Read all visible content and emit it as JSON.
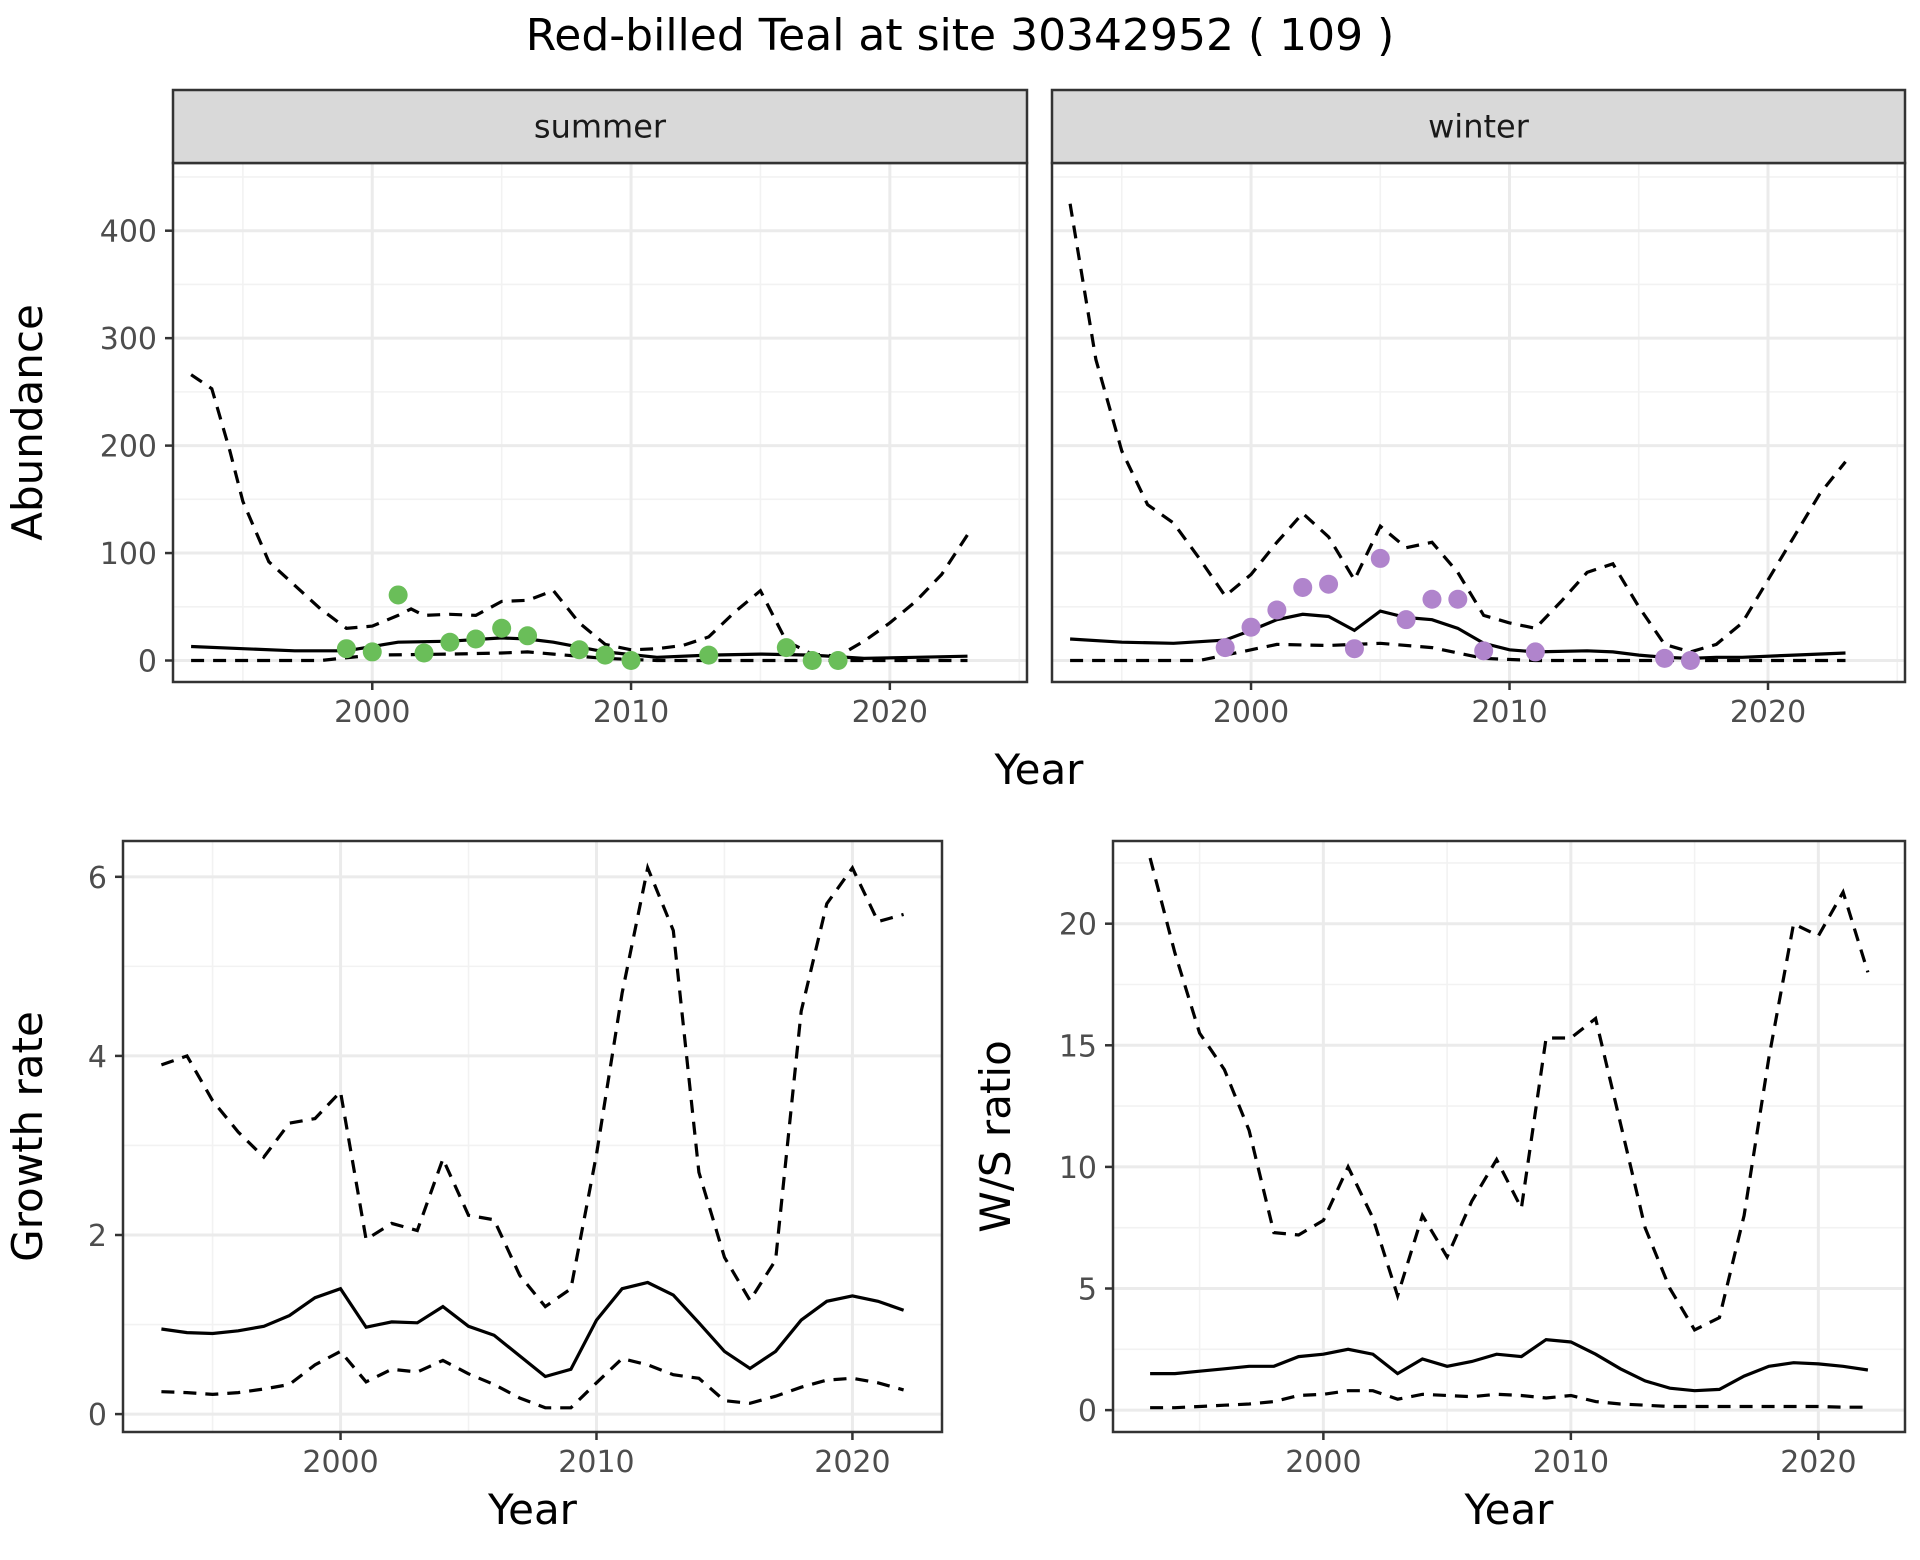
{
  "title": "Red-billed Teal at site 30342952 ( 109 )",
  "colors": {
    "summer_points": "#6ABE59",
    "winter_points": "#B084CC"
  },
  "chart_data": [
    {
      "type": "line",
      "facet": "summer",
      "xlabel": "Year",
      "ylabel": "Abundance",
      "xlim": [
        1992.3,
        2025.3
      ],
      "ylim": [
        -20,
        463
      ],
      "xticks": [
        2000,
        2010,
        2020
      ],
      "yticks": [
        0,
        100,
        200,
        300,
        400
      ],
      "grid": true,
      "series": [
        {
          "style": "solid",
          "x": [
            1993,
            1995,
            1997,
            1999,
            2001,
            2003,
            2005,
            2006,
            2007,
            2009,
            2011,
            2013,
            2015,
            2017,
            2019,
            2021,
            2023
          ],
          "y": [
            13,
            11,
            9,
            9,
            17,
            18,
            21,
            20,
            17,
            8,
            3,
            5,
            6,
            5,
            2,
            3,
            4
          ]
        },
        {
          "style": "dashed",
          "x": [
            1993,
            1993.8,
            1994.5,
            1995,
            1996,
            1998,
            1999,
            2000,
            2001,
            2001.5,
            2002,
            2003,
            2004,
            2005,
            2006,
            2007,
            2007.5,
            2008,
            2009,
            2010,
            2011,
            2012,
            2013,
            2014,
            2015,
            2016,
            2017,
            2018,
            2019,
            2020,
            2021,
            2022,
            2023
          ],
          "y": [
            266,
            253,
            195,
            148,
            92,
            48,
            30,
            32,
            42,
            48,
            42,
            43,
            42,
            55,
            56,
            65,
            50,
            35,
            15,
            10,
            11,
            14,
            22,
            45,
            65,
            18,
            6,
            4,
            18,
            35,
            55,
            80,
            117
          ]
        },
        {
          "style": "dashed",
          "x": [
            1993,
            1995,
            1998,
            2000,
            2003,
            2005,
            2006,
            2007,
            2009,
            2011,
            2013,
            2015,
            2017,
            2019,
            2021,
            2023
          ],
          "y": [
            0,
            0,
            0,
            5,
            6,
            7,
            8,
            6,
            2,
            0,
            0,
            0,
            0,
            0,
            0,
            0
          ]
        }
      ],
      "points": {
        "x": [
          1999,
          2000,
          2001,
          2002,
          2003,
          2004,
          2005,
          2006,
          2008,
          2009,
          2010,
          2013,
          2016,
          2017,
          2018
        ],
        "y": [
          11,
          8,
          61,
          7,
          17,
          20,
          30,
          23,
          10,
          5,
          0,
          5,
          12,
          0,
          0
        ]
      }
    },
    {
      "type": "line",
      "facet": "winter",
      "xlabel": "Year",
      "ylabel": "Abundance",
      "xlim": [
        1992.3,
        2025.3
      ],
      "ylim": [
        -20,
        463
      ],
      "xticks": [
        2000,
        2010,
        2020
      ],
      "yticks": [
        0,
        100,
        200,
        300,
        400
      ],
      "grid": true,
      "series": [
        {
          "style": "solid",
          "x": [
            1993,
            1995,
            1997,
            1999,
            2000,
            2001,
            2002,
            2003,
            2004,
            2005,
            2006,
            2007,
            2008,
            2009,
            2010,
            2011,
            2013,
            2014,
            2015,
            2016,
            2017,
            2018,
            2019,
            2021,
            2023
          ],
          "y": [
            20,
            17,
            16,
            19,
            28,
            38,
            43,
            41,
            28,
            46,
            40,
            38,
            30,
            16,
            10,
            8,
            9,
            8,
            5,
            3,
            2,
            3,
            3,
            5,
            7
          ]
        },
        {
          "style": "dashed",
          "x": [
            1993,
            1994,
            1995,
            1996,
            1997,
            1998,
            1999,
            2000,
            2001,
            2002,
            2003,
            2004,
            2005,
            2006,
            2007,
            2008,
            2009,
            2010,
            2011,
            2012,
            2013,
            2014,
            2015,
            2016,
            2017,
            2018,
            2019,
            2020,
            2021,
            2022,
            2023
          ],
          "y": [
            425,
            280,
            195,
            145,
            128,
            95,
            60,
            80,
            110,
            137,
            115,
            75,
            125,
            105,
            110,
            82,
            42,
            35,
            30,
            55,
            82,
            90,
            50,
            15,
            8,
            15,
            35,
            75,
            115,
            155,
            185
          ]
        },
        {
          "style": "dashed",
          "x": [
            1993,
            1995,
            1998,
            2000,
            2001,
            2003,
            2005,
            2007,
            2009,
            2011,
            2013,
            2015,
            2017,
            2019,
            2021,
            2023
          ],
          "y": [
            0,
            0,
            0,
            10,
            15,
            14,
            16,
            12,
            2,
            0,
            0,
            0,
            0,
            0,
            0,
            0
          ]
        }
      ],
      "points": {
        "x": [
          1999,
          2000,
          2001,
          2002,
          2003,
          2004,
          2005,
          2006,
          2007,
          2008,
          2009,
          2011,
          2016,
          2017
        ],
        "y": [
          12,
          31,
          47,
          68,
          71,
          11,
          95,
          38,
          57,
          57,
          9,
          8,
          2,
          0
        ]
      }
    },
    {
      "type": "line",
      "xlabel": "Year",
      "ylabel": "Growth rate",
      "xlim": [
        1991.5,
        2023.5
      ],
      "ylim": [
        -0.2,
        6.4
      ],
      "xticks": [
        2000,
        2010,
        2020
      ],
      "yticks": [
        0,
        2,
        4,
        6
      ],
      "grid": true,
      "series": [
        {
          "style": "solid",
          "x": [
            1993,
            1994,
            1995,
            1996,
            1997,
            1998,
            1999,
            2000,
            2001,
            2002,
            2003,
            2004,
            2005,
            2006,
            2007,
            2008,
            2009,
            2010,
            2011,
            2012,
            2013,
            2014,
            2015,
            2016,
            2017,
            2018,
            2019,
            2020,
            2021,
            2022
          ],
          "y": [
            0.95,
            0.91,
            0.9,
            0.93,
            0.98,
            1.1,
            1.3,
            1.4,
            0.97,
            1.03,
            1.02,
            1.2,
            0.98,
            0.88,
            0.65,
            0.42,
            0.5,
            1.05,
            1.4,
            1.47,
            1.33,
            1.02,
            0.7,
            0.51,
            0.7,
            1.05,
            1.26,
            1.32,
            1.26,
            1.16
          ]
        },
        {
          "style": "dashed",
          "x": [
            1993,
            1994,
            1995,
            1996,
            1997,
            1998,
            1999,
            2000,
            2001,
            2002,
            2003,
            2004,
            2005,
            2006,
            2007,
            2008,
            2009,
            2010,
            2011,
            2012,
            2013,
            2014,
            2015,
            2016,
            2017,
            2018,
            2019,
            2020,
            2021,
            2022
          ],
          "y": [
            3.9,
            4.0,
            3.5,
            3.15,
            2.87,
            3.25,
            3.3,
            3.6,
            1.95,
            2.13,
            2.05,
            2.85,
            2.22,
            2.17,
            1.55,
            1.2,
            1.4,
            2.9,
            4.7,
            6.1,
            5.4,
            2.7,
            1.75,
            1.27,
            1.72,
            4.5,
            5.7,
            6.1,
            5.5,
            5.58
          ]
        },
        {
          "style": "dashed",
          "x": [
            1993,
            1994,
            1995,
            1996,
            1997,
            1998,
            1999,
            2000,
            2001,
            2002,
            2003,
            2004,
            2005,
            2006,
            2007,
            2008,
            2009,
            2010,
            2011,
            2012,
            2013,
            2014,
            2015,
            2016,
            2017,
            2018,
            2019,
            2020,
            2021,
            2022
          ],
          "y": [
            0.25,
            0.24,
            0.22,
            0.24,
            0.28,
            0.33,
            0.55,
            0.7,
            0.36,
            0.5,
            0.47,
            0.6,
            0.45,
            0.33,
            0.18,
            0.07,
            0.07,
            0.35,
            0.62,
            0.55,
            0.44,
            0.4,
            0.15,
            0.12,
            0.2,
            0.3,
            0.38,
            0.4,
            0.35,
            0.27
          ]
        }
      ]
    },
    {
      "type": "line",
      "xlabel": "Year",
      "ylabel": "W/S ratio",
      "xlim": [
        1991.5,
        2023.5
      ],
      "ylim": [
        -0.9,
        23.4
      ],
      "xticks": [
        2000,
        2010,
        2020
      ],
      "yticks": [
        0,
        5,
        10,
        15,
        20
      ],
      "grid": true,
      "series": [
        {
          "style": "solid",
          "x": [
            1993,
            1994,
            1995,
            1996,
            1997,
            1998,
            1999,
            2000,
            2001,
            2002,
            2003,
            2004,
            2005,
            2006,
            2007,
            2008,
            2009,
            2010,
            2011,
            2012,
            2013,
            2014,
            2015,
            2016,
            2017,
            2018,
            2019,
            2020,
            2021,
            2022
          ],
          "y": [
            1.5,
            1.5,
            1.6,
            1.7,
            1.8,
            1.8,
            2.2,
            2.3,
            2.5,
            2.3,
            1.5,
            2.1,
            1.8,
            2.0,
            2.3,
            2.2,
            2.9,
            2.8,
            2.3,
            1.7,
            1.2,
            0.9,
            0.8,
            0.85,
            1.4,
            1.8,
            1.95,
            1.9,
            1.8,
            1.65
          ]
        },
        {
          "style": "dashed",
          "x": [
            1993,
            1994,
            1995,
            1996,
            1997,
            1998,
            1999,
            2000,
            2001,
            2002,
            2003,
            2004,
            2005,
            2006,
            2007,
            2008,
            2009,
            2010,
            2011,
            2012,
            2013,
            2014,
            2015,
            2016,
            2017,
            2018,
            2019,
            2020,
            2021,
            2022
          ],
          "y": [
            22.7,
            18.8,
            15.5,
            14.0,
            11.5,
            7.3,
            7.2,
            7.8,
            10.0,
            7.9,
            4.7,
            8.0,
            6.3,
            8.6,
            10.3,
            8.3,
            15.3,
            15.3,
            16.1,
            11.8,
            7.5,
            5.0,
            3.3,
            3.8,
            8.0,
            14.5,
            20.0,
            19.5,
            21.3,
            18.0
          ]
        },
        {
          "style": "dashed",
          "x": [
            1993,
            1994,
            1995,
            1996,
            1997,
            1998,
            1999,
            2000,
            2001,
            2002,
            2003,
            2004,
            2005,
            2006,
            2007,
            2008,
            2009,
            2010,
            2011,
            2012,
            2013,
            2014,
            2015,
            2016,
            2017,
            2018,
            2019,
            2020,
            2021,
            2022
          ],
          "y": [
            0.1,
            0.1,
            0.15,
            0.2,
            0.25,
            0.35,
            0.6,
            0.65,
            0.8,
            0.8,
            0.45,
            0.65,
            0.6,
            0.55,
            0.65,
            0.6,
            0.5,
            0.6,
            0.35,
            0.25,
            0.2,
            0.15,
            0.15,
            0.15,
            0.15,
            0.15,
            0.15,
            0.15,
            0.12,
            0.12
          ]
        }
      ]
    }
  ]
}
